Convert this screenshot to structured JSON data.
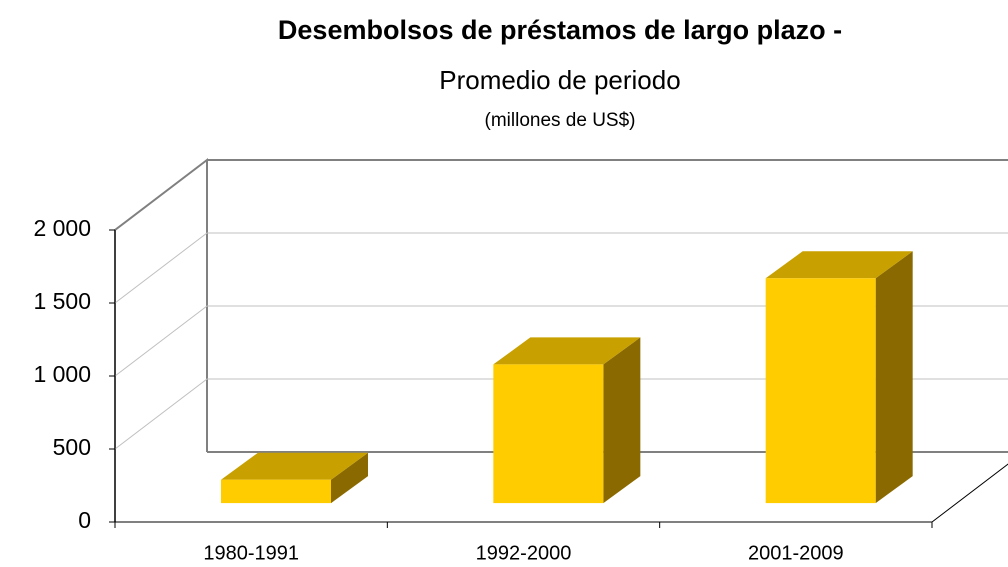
{
  "chart_data": {
    "type": "bar3d",
    "title": "Desembolsos de préstamos de largo plazo -",
    "subtitle": "Promedio de periodo",
    "note": "(millones de US$)",
    "categories": [
      "1980-1991",
      "1992-2000",
      "2001-2009"
    ],
    "values": [
      160,
      950,
      1540
    ],
    "color": "#ffcc00",
    "top_color": "#c8a000",
    "side_color": "#8a6a00",
    "ylim": [
      0,
      2000
    ],
    "yticks": [
      0,
      500,
      {
        "value": 1000,
        "label": "1 000"
      },
      {
        "value": 1500,
        "label": "1 500"
      },
      {
        "value": 2000,
        "label": "2 000"
      }
    ],
    "grid": true
  }
}
